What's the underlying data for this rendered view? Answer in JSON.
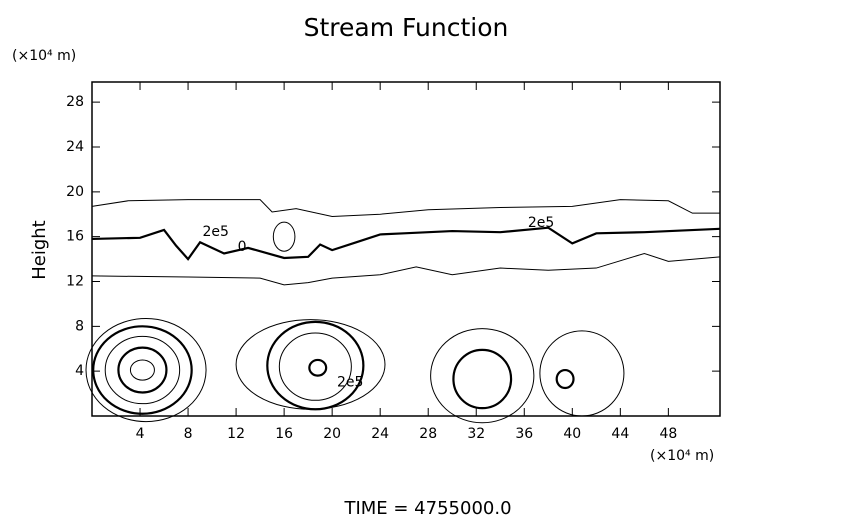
{
  "chart_data": {
    "type": "contour",
    "title": "Stream Function",
    "ylabel": "Height",
    "x_unit": "(×10⁴ m)",
    "y_unit": "(×10⁴ m)",
    "footer": "TIME  =  4755000.0",
    "xlim": [
      0,
      52.3
    ],
    "ylim": [
      0,
      29.8
    ],
    "xticks": [
      4,
      8,
      12,
      16,
      20,
      24,
      28,
      32,
      36,
      40,
      44,
      48
    ],
    "yticks": [
      4,
      8,
      12,
      16,
      20,
      24,
      28
    ],
    "lines": [
      {
        "bold": false,
        "x": [
          0,
          3,
          8,
          14,
          15,
          17,
          20,
          24,
          28,
          34,
          40,
          44,
          48,
          50,
          52.3
        ],
        "y": [
          18.7,
          19.2,
          19.3,
          19.3,
          18.2,
          18.5,
          17.8,
          18.0,
          18.4,
          18.6,
          18.7,
          19.3,
          19.2,
          18.1,
          18.1
        ]
      },
      {
        "bold": false,
        "x": [
          0,
          8,
          14,
          16,
          18,
          20,
          24,
          27,
          30,
          34,
          38,
          42,
          46,
          48,
          52.3
        ],
        "y": [
          12.5,
          12.4,
          12.3,
          11.7,
          11.9,
          12.3,
          12.6,
          13.3,
          12.6,
          13.2,
          13.0,
          13.2,
          14.5,
          13.8,
          14.2
        ]
      },
      {
        "bold": true,
        "x": [
          0,
          4,
          6,
          7,
          8,
          9,
          11,
          13,
          16,
          18,
          19,
          20,
          22,
          24,
          26,
          30,
          34,
          38,
          40,
          42,
          46,
          52.3
        ],
        "y": [
          15.8,
          15.9,
          16.6,
          15.2,
          14.0,
          15.5,
          14.5,
          15.0,
          14.1,
          14.2,
          15.3,
          14.8,
          15.5,
          16.2,
          16.3,
          16.5,
          16.4,
          16.8,
          15.4,
          16.3,
          16.4,
          16.7
        ]
      }
    ],
    "rings": [
      {
        "bold": false,
        "cx": 16,
        "cy": 16,
        "rx": 0.9,
        "ry": 1.3
      },
      {
        "bold": false,
        "cx": 4.2,
        "cy": 4.1,
        "rx": 1.0,
        "ry": 0.9
      },
      {
        "bold": true,
        "cx": 4.2,
        "cy": 4.1,
        "rx": 2.0,
        "ry": 2.0
      },
      {
        "bold": false,
        "cx": 4.2,
        "cy": 4.1,
        "rx": 3.1,
        "ry": 3.0
      },
      {
        "bold": true,
        "cx": 4.2,
        "cy": 4.1,
        "rx": 4.1,
        "ry": 3.9
      },
      {
        "bold": false,
        "cx": 4.5,
        "cy": 4.1,
        "rx": 5.0,
        "ry": 4.6
      },
      {
        "bold": true,
        "cx": 18.8,
        "cy": 4.3,
        "rx": 0.7,
        "ry": 0.7
      },
      {
        "bold": false,
        "cx": 18.6,
        "cy": 4.4,
        "rx": 3.0,
        "ry": 3.0
      },
      {
        "bold": true,
        "cx": 18.6,
        "cy": 4.5,
        "rx": 4.0,
        "ry": 3.9
      },
      {
        "bold": false,
        "cx": 18.2,
        "cy": 4.6,
        "rx": 6.2,
        "ry": 4.0
      },
      {
        "bold": true,
        "cx": 32.5,
        "cy": 3.3,
        "rx": 2.4,
        "ry": 2.6
      },
      {
        "bold": false,
        "cx": 32.5,
        "cy": 3.6,
        "rx": 4.3,
        "ry": 4.2
      },
      {
        "bold": true,
        "cx": 39.4,
        "cy": 3.3,
        "rx": 0.7,
        "ry": 0.8
      },
      {
        "bold": false,
        "cx": 40.8,
        "cy": 3.8,
        "rx": 3.5,
        "ry": 3.8
      }
    ],
    "annotations": [
      {
        "text": "2e5",
        "x": 10.3,
        "y": 16.4
      },
      {
        "text": "0",
        "x": 12.5,
        "y": 15.1
      },
      {
        "text": "2e5",
        "x": 37.4,
        "y": 17.2
      },
      {
        "text": "2e5",
        "x": 21.5,
        "y": 3.0
      }
    ]
  }
}
